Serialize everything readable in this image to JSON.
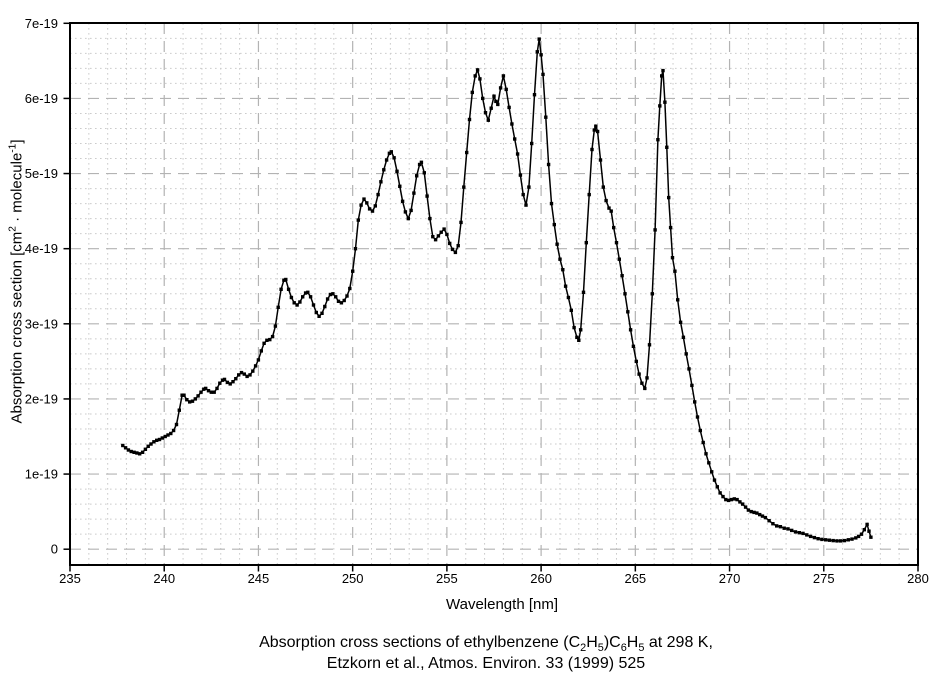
{
  "style": {
    "background": "#ffffff",
    "curve_color": "#000000",
    "frame_color": "#000000",
    "major_grid_color": "#b3b3b3",
    "minor_grid_color": "#cbcbcb",
    "text_color": "#000000"
  },
  "axes": {
    "x": {
      "label": "Wavelength [nm]",
      "min": 235,
      "max": 280,
      "major_tick_values": [
        235,
        240,
        245,
        250,
        255,
        260,
        265,
        270,
        275,
        280
      ],
      "major_tick_labels": [
        "235",
        "240",
        "245",
        "250",
        "255",
        "260",
        "265",
        "270",
        "275",
        "280"
      ],
      "minor_step": 1
    },
    "y": {
      "label_plain": "Absorption cross section [cm2 · molecule-1]",
      "label_segments": [
        {
          "t": "Absorption cross section [cm"
        },
        {
          "t": "2",
          "sup": true
        },
        {
          "t": " · molecule"
        },
        {
          "t": "-1",
          "sup": true
        },
        {
          "t": "]"
        }
      ],
      "min_e19": 0,
      "max_e19": 7,
      "major_tick_values_e19": [
        0,
        1,
        2,
        3,
        4,
        5,
        6,
        7
      ],
      "major_tick_labels": [
        "0",
        "1e-19",
        "2e-19",
        "3e-19",
        "4e-19",
        "5e-19",
        "6e-19",
        "7e-19"
      ],
      "minor_step_e19": 0.2
    }
  },
  "caption": {
    "line1_plain": "Absorption cross sections of ethylbenzene (C2H5)C6H5 at 298 K,",
    "line1_segments": [
      {
        "t": "Absorption cross sections of ethylbenzene (C"
      },
      {
        "t": "2",
        "sub": true
      },
      {
        "t": "H"
      },
      {
        "t": "5",
        "sub": true
      },
      {
        "t": ")C"
      },
      {
        "t": "6",
        "sub": true
      },
      {
        "t": "H"
      },
      {
        "t": "5",
        "sub": true
      },
      {
        "t": " at 298 K,"
      }
    ],
    "line2": "Etzkorn et al., Atmos. Environ. 33 (1999) 525"
  },
  "chart_data": {
    "type": "line",
    "title": "Absorption cross sections of ethylbenzene (C2H5)C6H5 at 298 K, Etzkorn et al., Atmos. Environ. 33 (1999) 525",
    "xlabel": "Wavelength [nm]",
    "ylabel": "Absorption cross section [cm^2 · molecule^-1]",
    "xlim": [
      235,
      280
    ],
    "ylim": [
      0,
      7e-19
    ],
    "grid": true,
    "legend": false,
    "marker": "square",
    "y_unit_factor": 1e-19,
    "points_unit": "wavelength_nm, cross_section_in_1e-19_cm2_per_molecule",
    "points": [
      [
        237.8,
        1.38
      ],
      [
        237.95,
        1.35
      ],
      [
        238.1,
        1.32
      ],
      [
        238.25,
        1.3
      ],
      [
        238.4,
        1.29
      ],
      [
        238.55,
        1.28
      ],
      [
        238.7,
        1.27
      ],
      [
        238.85,
        1.29
      ],
      [
        239.0,
        1.33
      ],
      [
        239.15,
        1.37
      ],
      [
        239.3,
        1.4
      ],
      [
        239.45,
        1.43
      ],
      [
        239.6,
        1.45
      ],
      [
        239.75,
        1.46
      ],
      [
        239.9,
        1.48
      ],
      [
        240.05,
        1.5
      ],
      [
        240.2,
        1.52
      ],
      [
        240.35,
        1.54
      ],
      [
        240.5,
        1.58
      ],
      [
        240.65,
        1.66
      ],
      [
        240.8,
        1.85
      ],
      [
        240.95,
        2.05
      ],
      [
        241.05,
        2.05
      ],
      [
        241.2,
        1.99
      ],
      [
        241.35,
        1.96
      ],
      [
        241.5,
        1.97
      ],
      [
        241.65,
        2.0
      ],
      [
        241.8,
        2.04
      ],
      [
        241.95,
        2.09
      ],
      [
        242.1,
        2.13
      ],
      [
        242.2,
        2.14
      ],
      [
        242.35,
        2.11
      ],
      [
        242.5,
        2.09
      ],
      [
        242.65,
        2.09
      ],
      [
        242.8,
        2.14
      ],
      [
        242.95,
        2.21
      ],
      [
        243.1,
        2.25
      ],
      [
        243.2,
        2.26
      ],
      [
        243.35,
        2.22
      ],
      [
        243.5,
        2.2
      ],
      [
        243.65,
        2.23
      ],
      [
        243.8,
        2.27
      ],
      [
        243.95,
        2.32
      ],
      [
        244.1,
        2.35
      ],
      [
        244.25,
        2.33
      ],
      [
        244.4,
        2.3
      ],
      [
        244.55,
        2.32
      ],
      [
        244.7,
        2.37
      ],
      [
        244.85,
        2.44
      ],
      [
        245.0,
        2.52
      ],
      [
        245.15,
        2.64
      ],
      [
        245.3,
        2.74
      ],
      [
        245.45,
        2.78
      ],
      [
        245.6,
        2.79
      ],
      [
        245.75,
        2.83
      ],
      [
        245.9,
        2.97
      ],
      [
        246.05,
        3.22
      ],
      [
        246.2,
        3.46
      ],
      [
        246.35,
        3.58
      ],
      [
        246.45,
        3.59
      ],
      [
        246.6,
        3.46
      ],
      [
        246.75,
        3.35
      ],
      [
        246.9,
        3.28
      ],
      [
        247.05,
        3.25
      ],
      [
        247.2,
        3.29
      ],
      [
        247.35,
        3.36
      ],
      [
        247.5,
        3.41
      ],
      [
        247.62,
        3.42
      ],
      [
        247.77,
        3.36
      ],
      [
        247.92,
        3.25
      ],
      [
        248.07,
        3.15
      ],
      [
        248.22,
        3.1
      ],
      [
        248.37,
        3.14
      ],
      [
        248.52,
        3.23
      ],
      [
        248.67,
        3.33
      ],
      [
        248.82,
        3.39
      ],
      [
        248.95,
        3.4
      ],
      [
        249.1,
        3.36
      ],
      [
        249.25,
        3.3
      ],
      [
        249.4,
        3.28
      ],
      [
        249.55,
        3.31
      ],
      [
        249.7,
        3.37
      ],
      [
        249.85,
        3.47
      ],
      [
        250.0,
        3.7
      ],
      [
        250.15,
        4.0
      ],
      [
        250.3,
        4.38
      ],
      [
        250.45,
        4.58
      ],
      [
        250.6,
        4.66
      ],
      [
        250.75,
        4.61
      ],
      [
        250.9,
        4.53
      ],
      [
        251.05,
        4.5
      ],
      [
        251.2,
        4.57
      ],
      [
        251.35,
        4.72
      ],
      [
        251.5,
        4.89
      ],
      [
        251.65,
        5.05
      ],
      [
        251.8,
        5.18
      ],
      [
        251.95,
        5.27
      ],
      [
        252.05,
        5.29
      ],
      [
        252.2,
        5.21
      ],
      [
        252.35,
        5.03
      ],
      [
        252.5,
        4.83
      ],
      [
        252.65,
        4.63
      ],
      [
        252.8,
        4.49
      ],
      [
        252.95,
        4.4
      ],
      [
        253.1,
        4.51
      ],
      [
        253.25,
        4.74
      ],
      [
        253.4,
        4.97
      ],
      [
        253.55,
        5.12
      ],
      [
        253.65,
        5.15
      ],
      [
        253.8,
        5.01
      ],
      [
        253.95,
        4.7
      ],
      [
        254.1,
        4.4
      ],
      [
        254.25,
        4.16
      ],
      [
        254.4,
        4.12
      ],
      [
        254.55,
        4.17
      ],
      [
        254.7,
        4.22
      ],
      [
        254.85,
        4.26
      ],
      [
        255.0,
        4.19
      ],
      [
        255.15,
        4.07
      ],
      [
        255.3,
        3.99
      ],
      [
        255.45,
        3.95
      ],
      [
        255.6,
        4.04
      ],
      [
        255.75,
        4.35
      ],
      [
        255.9,
        4.82
      ],
      [
        256.05,
        5.28
      ],
      [
        256.2,
        5.72
      ],
      [
        256.35,
        6.08
      ],
      [
        256.5,
        6.3
      ],
      [
        256.63,
        6.38
      ],
      [
        256.75,
        6.26
      ],
      [
        256.9,
        6.0
      ],
      [
        257.05,
        5.81
      ],
      [
        257.2,
        5.71
      ],
      [
        257.35,
        5.87
      ],
      [
        257.5,
        6.03
      ],
      [
        257.6,
        5.96
      ],
      [
        257.7,
        5.92
      ],
      [
        257.85,
        6.14
      ],
      [
        258.0,
        6.3
      ],
      [
        258.15,
        6.12
      ],
      [
        258.3,
        5.88
      ],
      [
        258.45,
        5.66
      ],
      [
        258.6,
        5.46
      ],
      [
        258.75,
        5.26
      ],
      [
        258.9,
        4.98
      ],
      [
        259.05,
        4.72
      ],
      [
        259.2,
        4.58
      ],
      [
        259.35,
        4.82
      ],
      [
        259.5,
        5.4
      ],
      [
        259.65,
        6.05
      ],
      [
        259.8,
        6.62
      ],
      [
        259.9,
        6.79
      ],
      [
        260.0,
        6.58
      ],
      [
        260.1,
        6.32
      ],
      [
        260.25,
        5.75
      ],
      [
        260.4,
        5.12
      ],
      [
        260.55,
        4.6
      ],
      [
        260.7,
        4.32
      ],
      [
        260.85,
        4.06
      ],
      [
        261.0,
        3.86
      ],
      [
        261.15,
        3.72
      ],
      [
        261.3,
        3.5
      ],
      [
        261.45,
        3.35
      ],
      [
        261.6,
        3.18
      ],
      [
        261.75,
        2.95
      ],
      [
        261.9,
        2.82
      ],
      [
        262.0,
        2.78
      ],
      [
        262.1,
        2.92
      ],
      [
        262.25,
        3.42
      ],
      [
        262.4,
        4.08
      ],
      [
        262.55,
        4.72
      ],
      [
        262.7,
        5.32
      ],
      [
        262.82,
        5.58
      ],
      [
        262.9,
        5.63
      ],
      [
        263.0,
        5.56
      ],
      [
        263.15,
        5.18
      ],
      [
        263.3,
        4.82
      ],
      [
        263.45,
        4.64
      ],
      [
        263.6,
        4.54
      ],
      [
        263.72,
        4.5
      ],
      [
        263.85,
        4.28
      ],
      [
        264.0,
        4.08
      ],
      [
        264.15,
        3.86
      ],
      [
        264.3,
        3.64
      ],
      [
        264.45,
        3.4
      ],
      [
        264.6,
        3.16
      ],
      [
        264.75,
        2.92
      ],
      [
        264.9,
        2.7
      ],
      [
        265.05,
        2.5
      ],
      [
        265.2,
        2.33
      ],
      [
        265.35,
        2.21
      ],
      [
        265.5,
        2.14
      ],
      [
        265.62,
        2.28
      ],
      [
        265.75,
        2.72
      ],
      [
        265.9,
        3.4
      ],
      [
        266.05,
        4.25
      ],
      [
        266.2,
        5.45
      ],
      [
        266.3,
        5.9
      ],
      [
        266.4,
        6.3
      ],
      [
        266.47,
        6.37
      ],
      [
        266.57,
        5.95
      ],
      [
        266.67,
        5.35
      ],
      [
        266.77,
        4.68
      ],
      [
        266.87,
        4.28
      ],
      [
        266.97,
        3.88
      ],
      [
        267.1,
        3.7
      ],
      [
        267.25,
        3.32
      ],
      [
        267.4,
        3.02
      ],
      [
        267.55,
        2.82
      ],
      [
        267.7,
        2.6
      ],
      [
        267.85,
        2.4
      ],
      [
        268.0,
        2.18
      ],
      [
        268.15,
        1.96
      ],
      [
        268.3,
        1.76
      ],
      [
        268.45,
        1.58
      ],
      [
        268.6,
        1.42
      ],
      [
        268.75,
        1.27
      ],
      [
        268.9,
        1.15
      ],
      [
        269.05,
        1.03
      ],
      [
        269.2,
        0.92
      ],
      [
        269.35,
        0.83
      ],
      [
        269.5,
        0.75
      ],
      [
        269.65,
        0.7
      ],
      [
        269.8,
        0.66
      ],
      [
        269.95,
        0.65
      ],
      [
        270.1,
        0.66
      ],
      [
        270.25,
        0.67
      ],
      [
        270.4,
        0.66
      ],
      [
        270.55,
        0.63
      ],
      [
        270.7,
        0.6
      ],
      [
        270.85,
        0.56
      ],
      [
        271.0,
        0.52
      ],
      [
        271.15,
        0.5
      ],
      [
        271.3,
        0.49
      ],
      [
        271.45,
        0.48
      ],
      [
        271.6,
        0.46
      ],
      [
        271.75,
        0.44
      ],
      [
        271.9,
        0.42
      ],
      [
        272.1,
        0.38
      ],
      [
        272.3,
        0.34
      ],
      [
        272.5,
        0.31
      ],
      [
        272.7,
        0.3
      ],
      [
        272.9,
        0.28
      ],
      [
        273.1,
        0.27
      ],
      [
        273.3,
        0.25
      ],
      [
        273.5,
        0.23
      ],
      [
        273.7,
        0.22
      ],
      [
        273.9,
        0.21
      ],
      [
        274.1,
        0.19
      ],
      [
        274.3,
        0.17
      ],
      [
        274.5,
        0.155
      ],
      [
        274.7,
        0.14
      ],
      [
        274.9,
        0.13
      ],
      [
        275.1,
        0.125
      ],
      [
        275.3,
        0.12
      ],
      [
        275.5,
        0.115
      ],
      [
        275.7,
        0.11
      ],
      [
        275.9,
        0.11
      ],
      [
        276.1,
        0.115
      ],
      [
        276.3,
        0.125
      ],
      [
        276.5,
        0.135
      ],
      [
        276.7,
        0.15
      ],
      [
        276.85,
        0.17
      ],
      [
        277.0,
        0.2
      ],
      [
        277.15,
        0.26
      ],
      [
        277.3,
        0.33
      ],
      [
        277.4,
        0.24
      ],
      [
        277.5,
        0.16
      ]
    ]
  }
}
